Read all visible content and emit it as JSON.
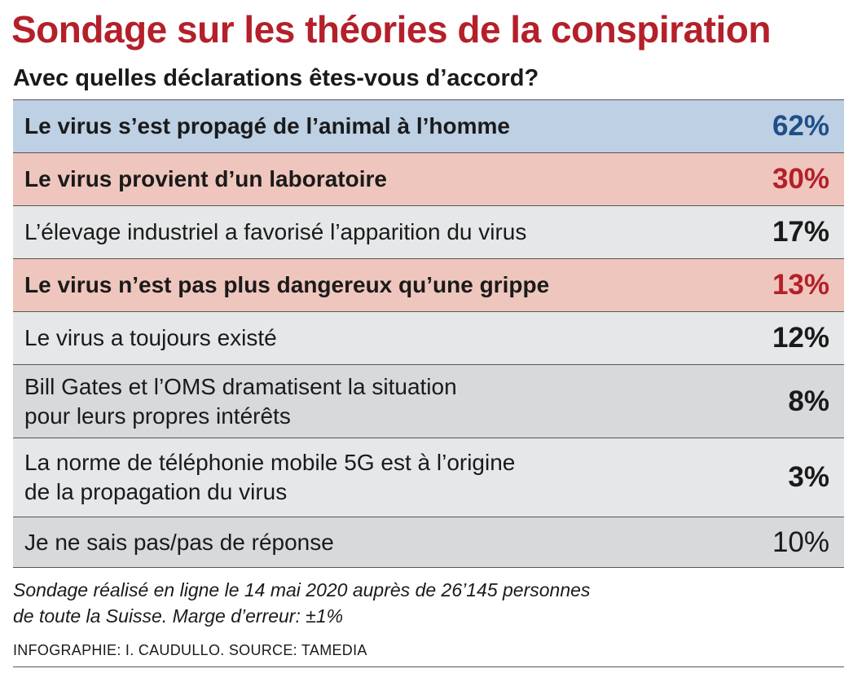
{
  "title": "Sondage sur les théories de la conspiration",
  "subtitle": "Avec quelles déclarations êtes-vous d’accord?",
  "chart_data": {
    "type": "table",
    "title": "Sondage sur les théories de la conspiration",
    "subtitle": "Avec quelles déclarations êtes-vous d’accord?",
    "rows": [
      {
        "label": "Le virus s’est propagé de l’animal à l’homme",
        "value": 62,
        "display": "62%",
        "bg": "#bdd0e4",
        "value_color": "#1f4f86",
        "bold": true
      },
      {
        "label": "Le virus provient d’un laboratoire",
        "value": 30,
        "display": "30%",
        "bg": "#efc6bd",
        "value_color": "#b4202a",
        "bold": true
      },
      {
        "label": "L’élevage industriel a favorisé l’apparition du virus",
        "value": 17,
        "display": "17%",
        "bg": "#e6e7e8",
        "value_color": "#1a1a1a",
        "bold": false
      },
      {
        "label": "Le virus n’est pas plus dangereux qu’une grippe",
        "value": 13,
        "display": "13%",
        "bg": "#efc6bd",
        "value_color": "#b4202a",
        "bold": true
      },
      {
        "label": "Le virus a toujours existé",
        "value": 12,
        "display": "12%",
        "bg": "#e6e7e8",
        "value_color": "#1a1a1a",
        "bold": false
      },
      {
        "label": "Bill Gates et l’OMS dramatisent la situation pour leurs propres intérêts",
        "lines": [
          "Bill Gates et l’OMS dramatisent la situation",
          "pour leurs propres intérêts"
        ],
        "value": 8,
        "display": "8%",
        "bg": "#d7d9db",
        "value_color": "#1a1a1a",
        "bold": false
      },
      {
        "label": "La norme de téléphonie mobile 5G est à l’origine de la propagation du virus",
        "lines": [
          "La norme de téléphonie mobile 5G est à l’origine",
          "de la propagation du virus"
        ],
        "value": 3,
        "display": "3%",
        "bg": "#e6e7e8",
        "value_color": "#1a1a1a",
        "bold": false
      },
      {
        "label": "Je ne sais pas/pas de réponse",
        "value": 10,
        "display": "10%",
        "bg": "#d7d9db",
        "value_color": "#1a1a1a",
        "bold": false,
        "light_value": true
      }
    ]
  },
  "footnote": {
    "line1": "Sondage réalisé en ligne le 14 mai 2020 auprès de 26’145 personnes",
    "line2": "de toute la Suisse. Marge d’erreur: ±1%"
  },
  "credit": "INFOGRAPHIE: I. CAUDULLO. SOURCE: TAMEDIA"
}
